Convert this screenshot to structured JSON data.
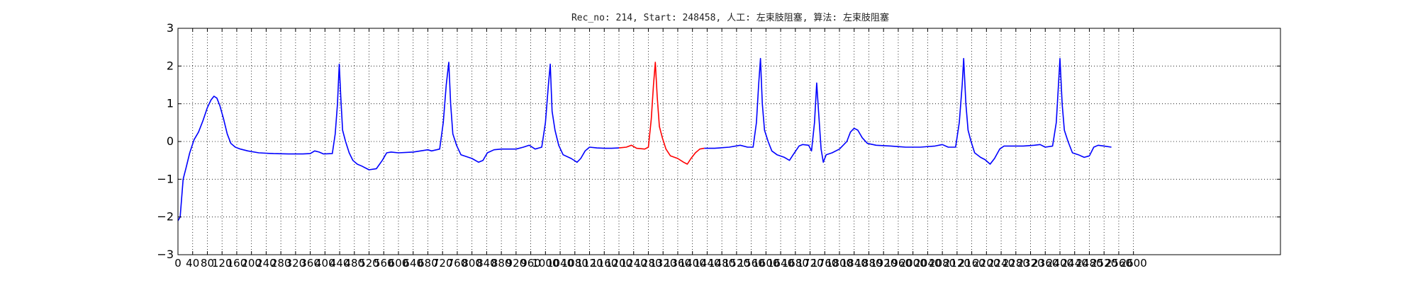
{
  "chart_data": {
    "type": "line",
    "title": "Rec_no: 214, Start: 248458, 人工: 左束肢阻塞, 算法: 左束肢阻塞",
    "xlabel": "",
    "ylabel": "",
    "xlim": [
      0,
      3000
    ],
    "ylim": [
      -3,
      3
    ],
    "yticks": [
      3,
      2,
      1,
      0,
      -1,
      -2,
      -3
    ],
    "ytick_labels": [
      "3",
      "2",
      "1",
      "0",
      "−1",
      "−2",
      "−3"
    ],
    "xtick_step": 40,
    "xtick_max": 2600,
    "xtick_labels": [
      "0",
      "40",
      "80",
      "120",
      "160",
      "200",
      "240",
      "280",
      "320",
      "360",
      "400",
      "440",
      "480",
      "520",
      "560",
      "600",
      "640",
      "680",
      "720",
      "760",
      "800",
      "840",
      "880",
      "920",
      "960",
      "1000",
      "1040",
      "1080",
      "1120",
      "1160",
      "1200",
      "1240",
      "1280",
      "1320",
      "1360",
      "1400",
      "1440",
      "1480",
      "1520",
      "1560",
      "1600",
      "1640",
      "1680",
      "1720",
      "1760",
      "1800",
      "1840",
      "1880",
      "1920",
      "1960",
      "2000",
      "2040",
      "2080",
      "2120",
      "2160",
      "2200",
      "2240",
      "2280",
      "2320",
      "2360",
      "2400",
      "2440",
      "2480",
      "2520",
      "2560",
      "2600"
    ],
    "grid": true,
    "series": [
      {
        "color": "#0000ff",
        "points": [
          [
            0,
            -2.1
          ],
          [
            6,
            -2.0
          ],
          [
            14,
            -1.0
          ],
          [
            22,
            -0.7
          ],
          [
            32,
            -0.3
          ],
          [
            44,
            0.05
          ],
          [
            56,
            0.25
          ],
          [
            68,
            0.55
          ],
          [
            80,
            0.9
          ],
          [
            90,
            1.1
          ],
          [
            98,
            1.2
          ],
          [
            106,
            1.15
          ],
          [
            114,
            0.95
          ],
          [
            124,
            0.6
          ],
          [
            134,
            0.2
          ],
          [
            144,
            -0.05
          ],
          [
            156,
            -0.15
          ],
          [
            170,
            -0.2
          ],
          [
            190,
            -0.25
          ],
          [
            220,
            -0.3
          ],
          [
            260,
            -0.32
          ],
          [
            300,
            -0.33
          ],
          [
            340,
            -0.33
          ],
          [
            360,
            -0.32
          ],
          [
            372,
            -0.25
          ],
          [
            384,
            -0.28
          ],
          [
            396,
            -0.33
          ],
          [
            420,
            -0.32
          ],
          [
            428,
            0.2
          ],
          [
            434,
            1.0
          ],
          [
            439,
            2.05
          ],
          [
            443,
            1.2
          ],
          [
            448,
            0.3
          ],
          [
            456,
            0.0
          ],
          [
            466,
            -0.3
          ],
          [
            476,
            -0.5
          ],
          [
            488,
            -0.6
          ],
          [
            500,
            -0.65
          ],
          [
            520,
            -0.75
          ],
          [
            540,
            -0.72
          ],
          [
            556,
            -0.5
          ],
          [
            568,
            -0.3
          ],
          [
            580,
            -0.28
          ],
          [
            600,
            -0.3
          ],
          [
            640,
            -0.28
          ],
          [
            680,
            -0.22
          ],
          [
            690,
            -0.25
          ],
          [
            712,
            -0.2
          ],
          [
            722,
            0.5
          ],
          [
            730,
            1.5
          ],
          [
            737,
            2.1
          ],
          [
            742,
            1.0
          ],
          [
            748,
            0.2
          ],
          [
            758,
            -0.1
          ],
          [
            770,
            -0.35
          ],
          [
            800,
            -0.45
          ],
          [
            818,
            -0.55
          ],
          [
            830,
            -0.5
          ],
          [
            842,
            -0.3
          ],
          [
            860,
            -0.22
          ],
          [
            880,
            -0.2
          ],
          [
            920,
            -0.2
          ],
          [
            940,
            -0.15
          ],
          [
            956,
            -0.1
          ],
          [
            972,
            -0.2
          ],
          [
            990,
            -0.15
          ],
          [
            1000,
            0.5
          ],
          [
            1008,
            1.5
          ],
          [
            1013,
            2.05
          ],
          [
            1018,
            0.8
          ],
          [
            1026,
            0.3
          ],
          [
            1036,
            -0.1
          ],
          [
            1048,
            -0.35
          ],
          [
            1070,
            -0.45
          ],
          [
            1086,
            -0.55
          ],
          [
            1096,
            -0.45
          ],
          [
            1108,
            -0.25
          ],
          [
            1120,
            -0.15
          ],
          [
            1140,
            -0.17
          ],
          [
            1160,
            -0.18
          ],
          [
            1180,
            -0.18
          ],
          [
            1200,
            -0.17
          ]
        ]
      },
      {
        "color": "#ff0000",
        "points": [
          [
            1200,
            -0.17
          ],
          [
            1220,
            -0.15
          ],
          [
            1234,
            -0.1
          ],
          [
            1248,
            -0.18
          ],
          [
            1270,
            -0.2
          ],
          [
            1280,
            -0.15
          ],
          [
            1288,
            0.6
          ],
          [
            1294,
            1.5
          ],
          [
            1299,
            2.1
          ],
          [
            1304,
            1.2
          ],
          [
            1310,
            0.4
          ],
          [
            1318,
            0.1
          ],
          [
            1328,
            -0.2
          ],
          [
            1340,
            -0.38
          ],
          [
            1360,
            -0.45
          ],
          [
            1376,
            -0.55
          ],
          [
            1386,
            -0.6
          ],
          [
            1396,
            -0.45
          ],
          [
            1408,
            -0.3
          ],
          [
            1420,
            -0.2
          ],
          [
            1432,
            -0.18
          ]
        ]
      },
      {
        "color": "#0000ff",
        "points": [
          [
            1432,
            -0.18
          ],
          [
            1460,
            -0.18
          ],
          [
            1500,
            -0.15
          ],
          [
            1530,
            -0.1
          ],
          [
            1550,
            -0.15
          ],
          [
            1565,
            -0.15
          ],
          [
            1574,
            0.5
          ],
          [
            1580,
            1.5
          ],
          [
            1585,
            2.2
          ],
          [
            1590,
            1.0
          ],
          [
            1596,
            0.3
          ],
          [
            1606,
            0.0
          ],
          [
            1616,
            -0.25
          ],
          [
            1630,
            -0.35
          ],
          [
            1650,
            -0.42
          ],
          [
            1664,
            -0.5
          ],
          [
            1674,
            -0.35
          ],
          [
            1690,
            -0.12
          ],
          [
            1700,
            -0.08
          ],
          [
            1716,
            -0.1
          ],
          [
            1724,
            -0.25
          ],
          [
            1732,
            0.5
          ],
          [
            1738,
            1.55
          ],
          [
            1743,
            0.8
          ],
          [
            1750,
            -0.2
          ],
          [
            1756,
            -0.55
          ],
          [
            1764,
            -0.35
          ],
          [
            1780,
            -0.3
          ],
          [
            1800,
            -0.2
          ],
          [
            1820,
            0.0
          ],
          [
            1830,
            0.25
          ],
          [
            1840,
            0.35
          ],
          [
            1850,
            0.3
          ],
          [
            1862,
            0.1
          ],
          [
            1876,
            -0.05
          ],
          [
            1900,
            -0.1
          ],
          [
            1940,
            -0.12
          ],
          [
            1980,
            -0.15
          ],
          [
            2020,
            -0.15
          ],
          [
            2060,
            -0.12
          ],
          [
            2080,
            -0.08
          ],
          [
            2096,
            -0.15
          ],
          [
            2116,
            -0.15
          ],
          [
            2126,
            0.5
          ],
          [
            2134,
            1.5
          ],
          [
            2138,
            2.2
          ],
          [
            2144,
            1.0
          ],
          [
            2150,
            0.3
          ],
          [
            2158,
            0.0
          ],
          [
            2168,
            -0.3
          ],
          [
            2184,
            -0.42
          ],
          [
            2196,
            -0.48
          ],
          [
            2210,
            -0.6
          ],
          [
            2222,
            -0.45
          ],
          [
            2236,
            -0.2
          ],
          [
            2248,
            -0.12
          ],
          [
            2270,
            -0.12
          ],
          [
            2300,
            -0.12
          ],
          [
            2330,
            -0.1
          ],
          [
            2346,
            -0.08
          ],
          [
            2360,
            -0.15
          ],
          [
            2380,
            -0.12
          ],
          [
            2390,
            0.5
          ],
          [
            2396,
            1.5
          ],
          [
            2400,
            2.2
          ],
          [
            2406,
            1.0
          ],
          [
            2412,
            0.3
          ],
          [
            2422,
            0.0
          ],
          [
            2434,
            -0.3
          ],
          [
            2450,
            -0.35
          ],
          [
            2466,
            -0.42
          ],
          [
            2480,
            -0.38
          ],
          [
            2492,
            -0.15
          ],
          [
            2504,
            -0.1
          ],
          [
            2520,
            -0.12
          ],
          [
            2540,
            -0.15
          ]
        ]
      }
    ]
  }
}
